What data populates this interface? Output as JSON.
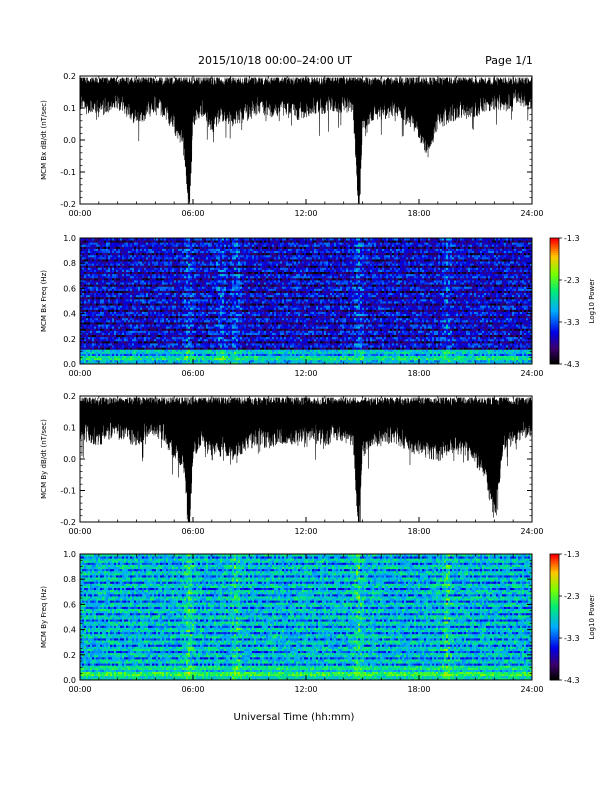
{
  "header": {
    "title": "2015/10/18   00:00–24:00 UT",
    "page": "Page 1/1"
  },
  "footer": {
    "xlabel": "Universal Time (hh:mm)"
  },
  "chart_data": [
    {
      "type": "line",
      "ylabel": "MCM Bx dB/dt (nT/sec)",
      "xlabel": "",
      "x_ticks": [
        "00:00",
        "06:00",
        "12:00",
        "18:00",
        "24:00"
      ],
      "xlim": [
        0,
        24
      ],
      "ylim": [
        -0.2,
        0.2
      ],
      "y_ticks": [
        "-0.2",
        "-0.1",
        "0.0",
        "0.1",
        "0.2"
      ],
      "series": [
        {
          "x": [
            0,
            0.5,
            1,
            1.5,
            2,
            2.5,
            3,
            3.5,
            4,
            4.5,
            5,
            5.5,
            5.8,
            6,
            6.5,
            7,
            7.5,
            8,
            8.5,
            9,
            9.5,
            10,
            10.5,
            11,
            11.5,
            12,
            12.5,
            13,
            13.5,
            14,
            14.5,
            14.8,
            15,
            15.5,
            16,
            16.5,
            17,
            17.5,
            18,
            18.5,
            19,
            19.5,
            20,
            20.5,
            21,
            21.5,
            22,
            22.5,
            23,
            23.5,
            24
          ],
          "y": [
            0.15,
            0.14,
            0.13,
            0.14,
            0.15,
            0.13,
            0.11,
            0.12,
            0.14,
            0.12,
            0.08,
            0.03,
            -0.2,
            0.1,
            0.13,
            0.08,
            0.12,
            0.1,
            0.11,
            0.12,
            0.14,
            0.13,
            0.13,
            0.14,
            0.12,
            0.13,
            0.14,
            0.14,
            0.15,
            0.14,
            0.14,
            -0.2,
            0.08,
            0.12,
            0.12,
            0.13,
            0.13,
            0.1,
            0.06,
            0.0,
            0.09,
            0.11,
            0.12,
            0.13,
            0.13,
            0.14,
            0.15,
            0.15,
            0.16,
            0.17,
            0.16
          ]
        }
      ]
    },
    {
      "type": "heatmap",
      "ylabel": "MCM Bx Freq (Hz)",
      "xlabel": "",
      "x_ticks": [
        "00:00",
        "06:00",
        "12:00",
        "18:00",
        "24:00"
      ],
      "xlim": [
        0,
        24
      ],
      "ylim": [
        0,
        1.0
      ],
      "y_ticks": [
        "0.0",
        "0.2",
        "0.4",
        "0.6",
        "0.8",
        "1.0"
      ],
      "colorbar": {
        "label": "Log10 Power",
        "ticks": [
          "-1.3",
          "-2.3",
          "-3.3",
          "-4.3"
        ],
        "range": [
          -4.3,
          -1.3
        ]
      },
      "features": {
        "base_level": -3.95,
        "low_freq_enhancement": -3.0,
        "bright_bands_hr": [
          5.8,
          7.5,
          8.3,
          14.8,
          19.5
        ],
        "harmonic_lines_hz": [
          0.05,
          0.1,
          0.15,
          0.2,
          0.25,
          0.3,
          0.35,
          0.4,
          0.45,
          0.5,
          0.55,
          0.6,
          0.65,
          0.7,
          0.75,
          0.8,
          0.85,
          0.9,
          0.95,
          1.0
        ]
      }
    },
    {
      "type": "line",
      "ylabel": "MCM By dB/dt (nT/sec)",
      "xlabel": "",
      "x_ticks": [
        "00:00",
        "06:00",
        "12:00",
        "18:00",
        "24:00"
      ],
      "xlim": [
        0,
        24
      ],
      "ylim": [
        -0.2,
        0.2
      ],
      "y_ticks": [
        "-0.2",
        "-0.1",
        "0.0",
        "0.1",
        "0.2"
      ],
      "series": [
        {
          "x": [
            0,
            0.5,
            1,
            1.5,
            2,
            2.5,
            3,
            3.5,
            4,
            4.5,
            5,
            5.5,
            5.8,
            6,
            6.5,
            7,
            7.5,
            8,
            8.5,
            9,
            9.5,
            10,
            10.5,
            11,
            11.5,
            12,
            12.5,
            13,
            13.5,
            14,
            14.5,
            14.8,
            15,
            15.5,
            16,
            16.5,
            17,
            17.5,
            18,
            18.5,
            19,
            19.5,
            20,
            20.5,
            21,
            21.5,
            22,
            22.5,
            23,
            23.5,
            24
          ],
          "y": [
            0.12,
            0.11,
            0.1,
            0.12,
            0.13,
            0.11,
            0.1,
            0.12,
            0.13,
            0.11,
            0.05,
            0.03,
            -0.2,
            0.06,
            0.1,
            0.05,
            0.08,
            0.05,
            0.07,
            0.09,
            0.1,
            0.09,
            0.1,
            0.11,
            0.1,
            0.11,
            0.12,
            0.09,
            0.12,
            0.11,
            0.1,
            -0.2,
            0.06,
            0.1,
            0.1,
            0.11,
            0.1,
            0.08,
            0.07,
            0.06,
            0.05,
            0.07,
            0.08,
            0.06,
            0.04,
            -0.01,
            -0.14,
            0.08,
            0.1,
            0.12,
            0.13
          ]
        }
      ]
    },
    {
      "type": "heatmap",
      "ylabel": "MCM By Freq (Hz)",
      "xlabel": "",
      "x_ticks": [
        "00:00",
        "06:00",
        "12:00",
        "18:00",
        "24:00"
      ],
      "xlim": [
        0,
        24
      ],
      "ylim": [
        0,
        1.0
      ],
      "y_ticks": [
        "0.0",
        "0.2",
        "0.4",
        "0.6",
        "0.8",
        "1.0"
      ],
      "colorbar": {
        "label": "Log10 Power",
        "ticks": [
          "-1.3",
          "-2.3",
          "-3.3",
          "-4.3"
        ],
        "range": [
          -4.3,
          -1.3
        ]
      },
      "features": {
        "base_level": -3.25,
        "low_freq_enhancement": -2.8,
        "bright_bands_hr": [
          5.8,
          8.3,
          14.8,
          19.5
        ],
        "harmonic_lines_hz": [
          0.05,
          0.1,
          0.15,
          0.2,
          0.25,
          0.3,
          0.35,
          0.4,
          0.45,
          0.5,
          0.55,
          0.6,
          0.65,
          0.7,
          0.75,
          0.8,
          0.85,
          0.9,
          0.95,
          1.0
        ]
      }
    }
  ]
}
